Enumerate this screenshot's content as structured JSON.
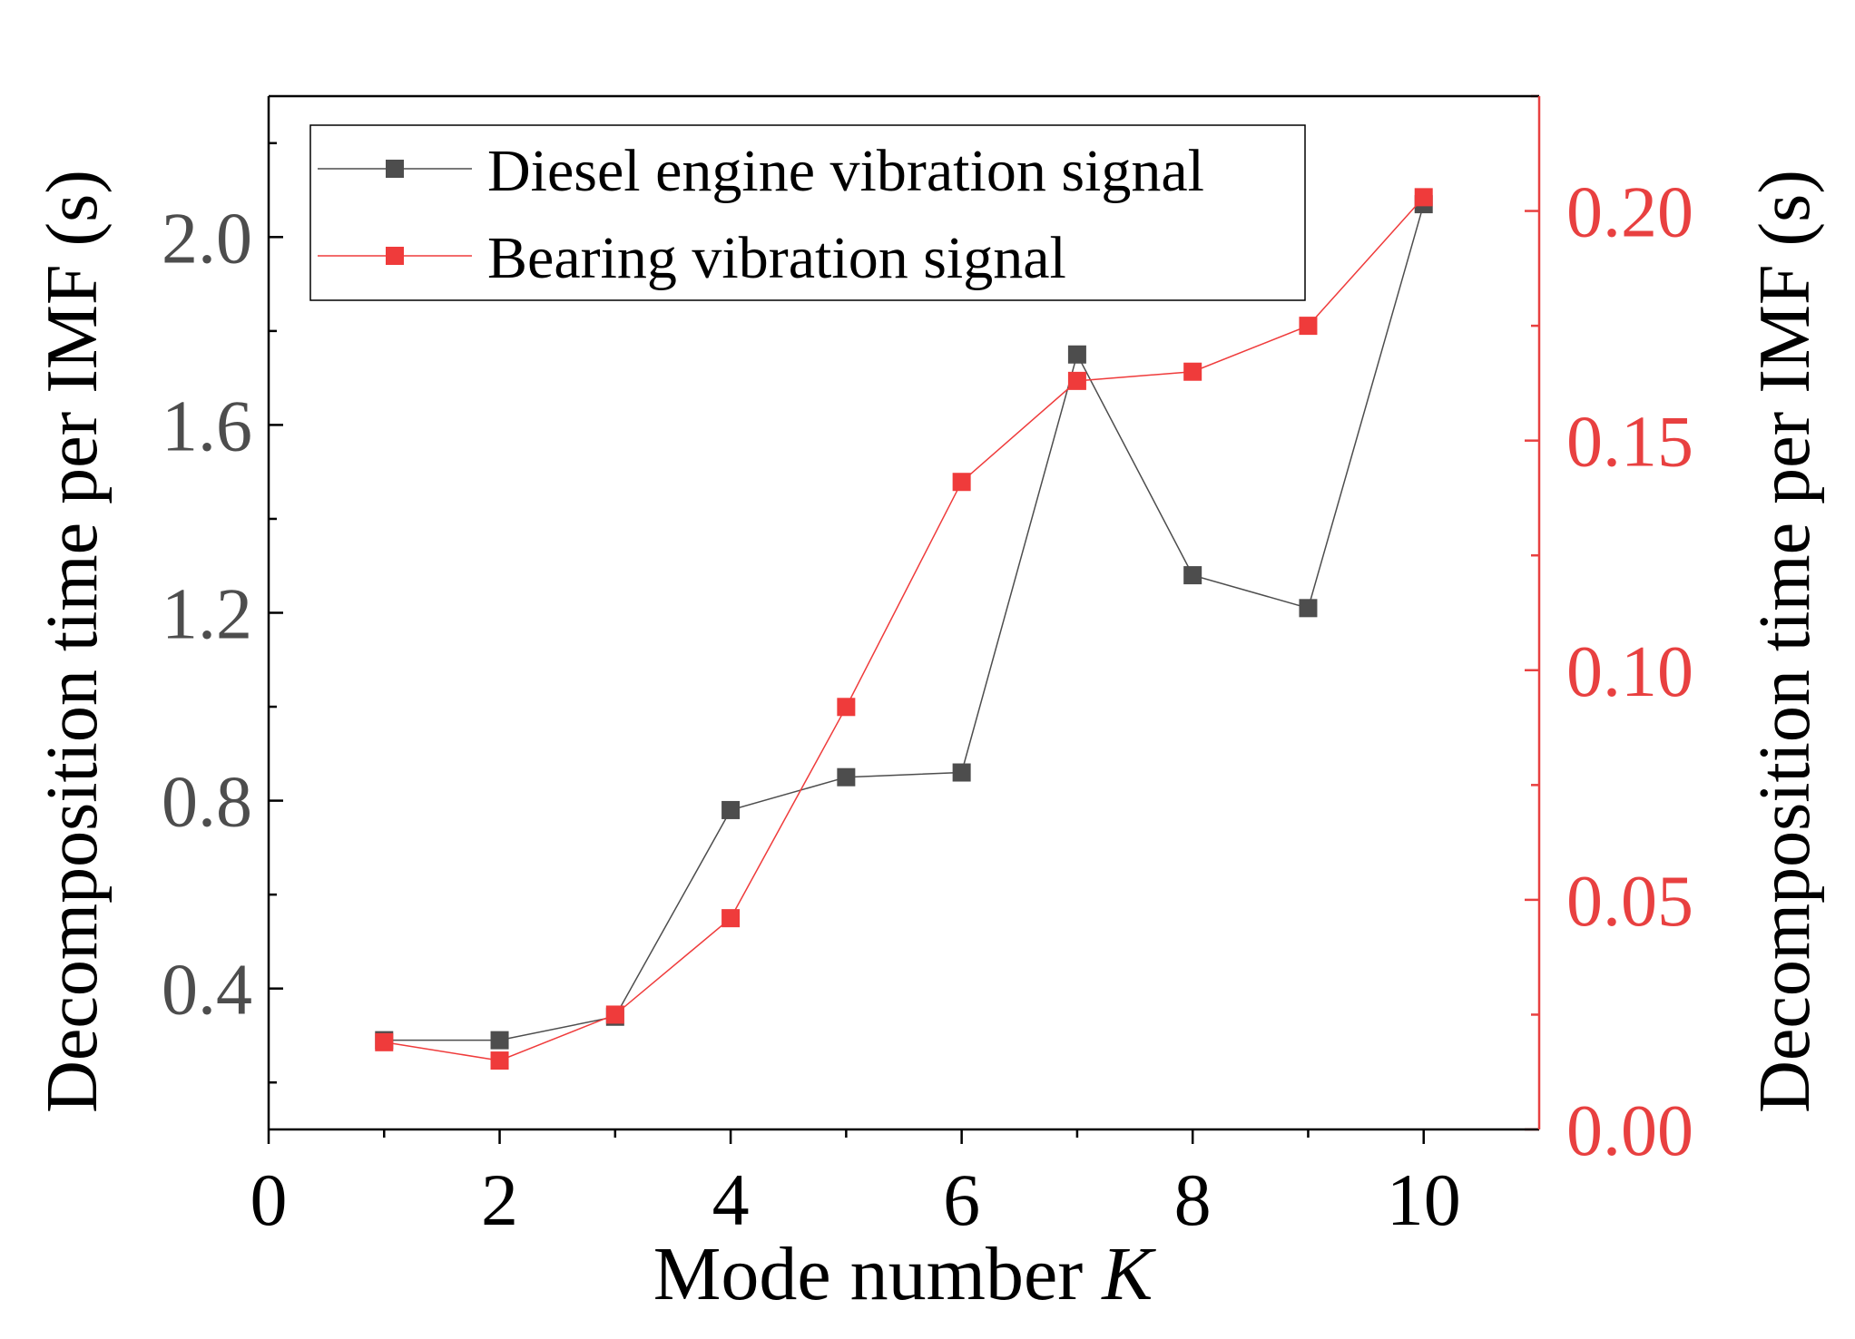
{
  "chart_data": {
    "type": "line",
    "xlabel": "Mode number ",
    "xlabel_italic": "K",
    "ylabel_left": "Decomposition time per IMF (s)",
    "ylabel_right": "Decomposition time per IMF (s)",
    "xlim": [
      0,
      11
    ],
    "ylim_left": [
      0.1,
      2.3
    ],
    "ylim_right": [
      0.0,
      0.225
    ],
    "x_ticks": [
      "0",
      "2",
      "4",
      "6",
      "8",
      "10"
    ],
    "y_left_ticks": [
      "0.4",
      "0.8",
      "1.2",
      "1.6",
      "2.0"
    ],
    "y_right_ticks": [
      "0.00",
      "0.05",
      "0.10",
      "0.15",
      "0.20"
    ],
    "legend_position": "top-left",
    "colors": {
      "left_axis": "#4d4d4d",
      "right_axis": "#e84040",
      "series_diesel": "#4d4d4d",
      "series_bearing": "#ef3b3b"
    },
    "series": [
      {
        "name": "Diesel engine vibration signal",
        "axis": "left",
        "x": [
          1,
          2,
          3,
          4,
          5,
          6,
          7,
          8,
          9,
          10
        ],
        "values": [
          0.29,
          0.29,
          0.34,
          0.78,
          0.85,
          0.86,
          1.75,
          1.28,
          1.21,
          2.07
        ]
      },
      {
        "name": "Bearing vibration signal",
        "axis": "right",
        "x": [
          1,
          2,
          3,
          4,
          5,
          6,
          7,
          8,
          9,
          10
        ],
        "values": [
          0.019,
          0.015,
          0.025,
          0.046,
          0.092,
          0.141,
          0.163,
          0.165,
          0.175,
          0.203
        ]
      }
    ]
  }
}
